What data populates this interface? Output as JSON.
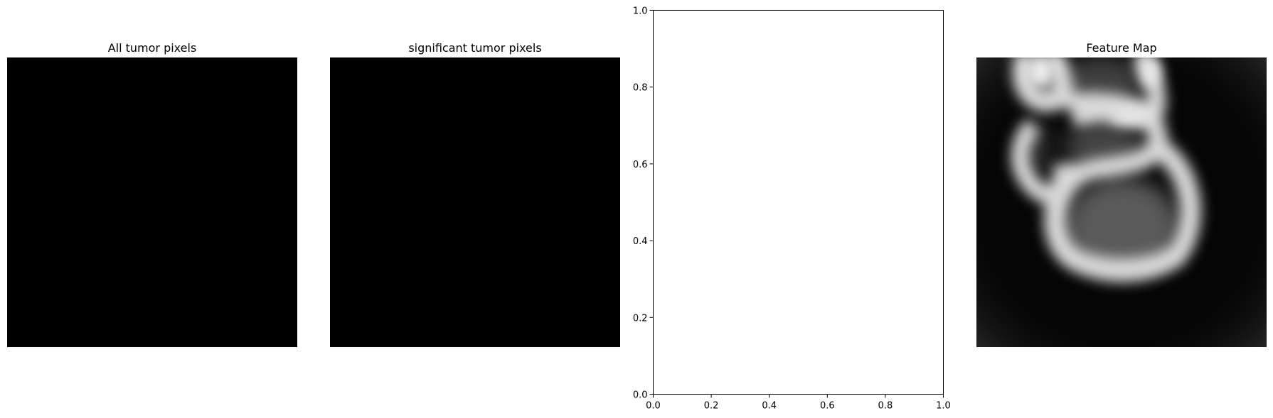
{
  "panels": [
    {
      "id": "all-tumor",
      "title": "All tumor pixels",
      "content": "solid black image"
    },
    {
      "id": "significant-tumor",
      "title": "significant tumor pixels",
      "content": "solid black image"
    },
    {
      "id": "empty-axes",
      "title": "",
      "content": "empty axes"
    },
    {
      "id": "feature-map",
      "title": "Feature Map",
      "content": "grayscale feature map image"
    }
  ],
  "chart_data": {
    "type": "scatter",
    "title": "",
    "xlabel": "",
    "ylabel": "",
    "xlim": [
      0.0,
      1.0
    ],
    "ylim": [
      0.0,
      1.0
    ],
    "xticks": [
      "0.0",
      "0.2",
      "0.4",
      "0.6",
      "0.8",
      "1.0"
    ],
    "yticks": [
      "0.0",
      "0.2",
      "0.4",
      "0.6",
      "0.8",
      "1.0"
    ],
    "series": [],
    "grid": false
  },
  "colors": {
    "background": "#ffffff",
    "image_fill": "#000000",
    "axis": "#000000"
  }
}
